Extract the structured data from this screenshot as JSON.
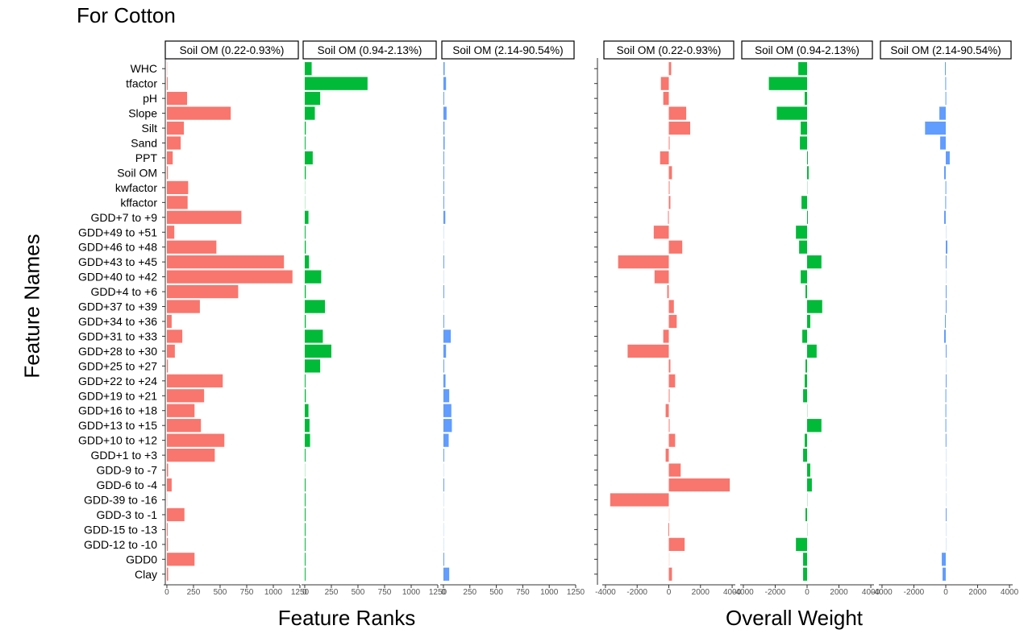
{
  "page_title": "For Cotton",
  "rank_axis_title": "Feature Ranks",
  "weight_axis_title": "Overall Weight",
  "y_axis_title": "Feature Names",
  "colors": {
    "low": "#F8766D",
    "mid": "#00BA38",
    "high": "#619CFF"
  },
  "chart_data": [
    {
      "type": "bar",
      "orientation": "horizontal",
      "group": "Feature Ranks",
      "facet_labels": [
        "Soil OM (0.22-0.93%)",
        "Soil OM (0.94-2.13%)",
        "Soil OM (2.14-90.54%)"
      ],
      "categories": [
        "WHC",
        "tfactor",
        "pH",
        "Slope",
        "Silt",
        "Sand",
        "PPT",
        "Soil OM",
        "kwfactor",
        "kffactor",
        "GDD+7 to +9",
        "GDD+49 to +51",
        "GDD+46 to +48",
        "GDD+43 to +45",
        "GDD+40 to +42",
        "GDD+4 to +6",
        "GDD+37 to +39",
        "GDD+34 to +36",
        "GDD+31 to +33",
        "GDD+28 to +30",
        "GDD+25 to +27",
        "GDD+22 to +24",
        "GDD+19 to +21",
        "GDD+16 to +18",
        "GDD+13 to +15",
        "GDD+10 to +12",
        "GDD+1 to +3",
        "GDD-9 to -7",
        "GDD-6 to -4",
        "GDD-39 to -16",
        "GDD-3 to -1",
        "GDD-15 to -13",
        "GDD-12 to -10",
        "GDD0",
        "Clay"
      ],
      "xlim": [
        -30,
        1250
      ],
      "xticks": [
        0,
        250,
        500,
        750,
        1000,
        1250
      ],
      "series": [
        {
          "name": "Soil OM (0.22-0.93%)",
          "values": [
            0,
            5,
            190,
            600,
            160,
            130,
            55,
            10,
            200,
            195,
            700,
            70,
            465,
            1100,
            1180,
            670,
            310,
            45,
            145,
            75,
            10,
            525,
            350,
            260,
            320,
            540,
            450,
            12,
            45,
            0,
            165,
            3,
            10,
            260,
            12
          ]
        },
        {
          "name": "Soil OM (0.94-2.13%)",
          "values": [
            65,
            590,
            145,
            95,
            10,
            5,
            75,
            10,
            0,
            0,
            35,
            3,
            10,
            40,
            155,
            10,
            190,
            10,
            170,
            250,
            145,
            5,
            10,
            35,
            45,
            50,
            3,
            0,
            8,
            3,
            8,
            3,
            3,
            3,
            3
          ]
        },
        {
          "name": "Soil OM (2.14-90.54%)",
          "values": [
            12,
            25,
            5,
            30,
            10,
            12,
            3,
            5,
            3,
            3,
            18,
            0,
            0,
            5,
            0,
            5,
            0,
            3,
            70,
            25,
            3,
            20,
            55,
            75,
            80,
            50,
            3,
            0,
            5,
            0,
            0,
            0,
            0,
            3,
            55
          ]
        }
      ]
    },
    {
      "type": "bar",
      "orientation": "horizontal",
      "group": "Overall Weight",
      "facet_labels": [
        "Soil OM (0.22-0.93%)",
        "Soil OM (0.94-2.13%)",
        "Soil OM (2.14-90.54%)"
      ],
      "categories": [
        "WHC",
        "tfactor",
        "pH",
        "Slope",
        "Silt",
        "Sand",
        "PPT",
        "Soil OM",
        "kwfactor",
        "kffactor",
        "GDD+7 to +9",
        "GDD+49 to +51",
        "GDD+46 to +48",
        "GDD+43 to +45",
        "GDD+40 to +42",
        "GDD+4 to +6",
        "GDD+37 to +39",
        "GDD+34 to +36",
        "GDD+31 to +33",
        "GDD+28 to +30",
        "GDD+25 to +27",
        "GDD+22 to +24",
        "GDD+19 to +21",
        "GDD+16 to +18",
        "GDD+13 to +15",
        "GDD+10 to +12",
        "GDD+1 to +3",
        "GDD-9 to -7",
        "GDD-6 to -4",
        "GDD-39 to -16",
        "GDD-3 to -1",
        "GDD-15 to -13",
        "GDD-12 to -10",
        "GDD0",
        "Clay"
      ],
      "xlim": [
        -4200,
        4200
      ],
      "xticks": [
        -4000,
        -2000,
        0,
        2000,
        4000
      ],
      "series": [
        {
          "name": "Soil OM (0.22-0.93%)",
          "values": [
            150,
            -500,
            -350,
            1100,
            1350,
            20,
            -550,
            200,
            10,
            100,
            -50,
            -950,
            850,
            -3200,
            -900,
            -100,
            320,
            500,
            -350,
            -2600,
            100,
            400,
            50,
            -200,
            50,
            400,
            -200,
            750,
            3850,
            -3700,
            0,
            -30,
            1000,
            0,
            200
          ]
        },
        {
          "name": "Soil OM (0.94-2.13%)",
          "values": [
            -550,
            -2400,
            -150,
            -1900,
            -400,
            -450,
            50,
            100,
            0,
            -350,
            20,
            -700,
            -500,
            900,
            -400,
            -100,
            950,
            200,
            -300,
            600,
            -100,
            -150,
            -250,
            0,
            900,
            -150,
            -250,
            200,
            300,
            0,
            -100,
            0,
            -700,
            -250,
            -250
          ]
        },
        {
          "name": "Soil OM (2.14-90.54%)",
          "values": [
            -50,
            -30,
            -20,
            -400,
            -1300,
            -350,
            250,
            -100,
            -20,
            -30,
            -100,
            0,
            100,
            10,
            0,
            20,
            30,
            -50,
            -100,
            50,
            0,
            50,
            -20,
            -20,
            -20,
            -10,
            0,
            0,
            0,
            0,
            50,
            0,
            0,
            -250,
            -200
          ]
        }
      ]
    }
  ]
}
